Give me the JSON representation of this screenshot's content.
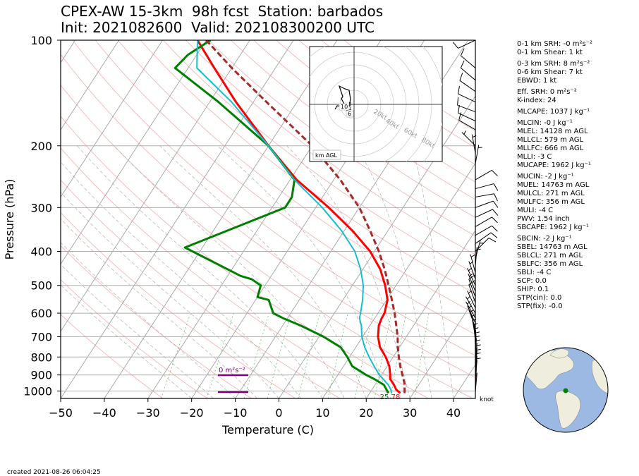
{
  "header": {
    "line1": "CPEX-AW 15-3km  98h fcst  Station: barbados",
    "line2": "Init: 2021082600  Valid: 202108300200 UTC"
  },
  "footer": "created 2021-08-26 06:04:25",
  "hodograph": {
    "ring_labels": [
      "20kt",
      "40kt",
      "60kt",
      "80kt"
    ],
    "height_labels": [
      "10",
      "3",
      "1",
      "6"
    ],
    "corner_label": "km AGL"
  },
  "srh_label": "0 m²s⁻²",
  "barb_unit": "knot",
  "surface_labels": {
    "dewpoint": "25",
    "temperature": "78"
  },
  "params": [
    {
      "t": "0-1 km SRH: -0 m²s⁻²"
    },
    {
      "t": "0-1 km Shear: 1 kt"
    },
    {
      "t": "0-3 km SRH: 8 m²s⁻²",
      "gap": true
    },
    {
      "t": "0-6 km Shear: 7 kt"
    },
    {
      "t": "EBWD: 1 kt"
    },
    {
      "t": "Eff. SRH: 0 m²s⁻²",
      "gap": true
    },
    {
      "t": "K-index: 24"
    },
    {
      "t": "MLCAPE: 1037 J kg⁻¹",
      "gap": true
    },
    {
      "t": "MLCIN: -0 J kg⁻¹",
      "gap": true
    },
    {
      "t": "MLEL: 14128 m AGL"
    },
    {
      "t": "MLLCL: 579 m AGL"
    },
    {
      "t": "MLLFC: 666 m AGL"
    },
    {
      "t": "MLLI: -3 C"
    },
    {
      "t": "MUCAPE: 1962 J kg⁻¹"
    },
    {
      "t": "MUCIN: -2 J kg⁻¹",
      "gap": true
    },
    {
      "t": "MUEL: 14763 m AGL"
    },
    {
      "t": "MULCL: 271 m AGL"
    },
    {
      "t": "MULFC: 356 m AGL"
    },
    {
      "t": "MULI: -4 C"
    },
    {
      "t": "PWV: 1.54 inch"
    },
    {
      "t": "SBCAPE: 1962 J kg⁻¹"
    },
    {
      "t": "SBCIN: -2 J kg⁻¹",
      "gap": true
    },
    {
      "t": "SBEL: 14763 m AGL"
    },
    {
      "t": "SBLCL: 271 m AGL"
    },
    {
      "t": "SBLFC: 356 m AGL"
    },
    {
      "t": "SBLI: -4 C"
    },
    {
      "t": "SCP: 0.0"
    },
    {
      "t": "SHIP: 0.1"
    },
    {
      "t": "STP(cin): 0.0"
    },
    {
      "t": "STP(fix): -0.0"
    }
  ],
  "colors": {
    "temperature": "#ff0000",
    "dewpoint": "#008000",
    "wetbulb": "#17becf",
    "parcel": "#a52a2a",
    "isotherm": "#aaaaaa",
    "dry_adiabat": "#f5b5b5",
    "mixing_ratio": "#7cc47c",
    "srh": "#800080",
    "globe_ocean": "#9cb9e4",
    "globe_land": "#efeede"
  },
  "chart_data": {
    "type": "skew-t",
    "xlabel": "Temperature (C)",
    "ylabel": "Pressure (hPa)",
    "x_ticks": [
      -50,
      -40,
      -30,
      -20,
      -10,
      0,
      10,
      20,
      30,
      40
    ],
    "y_ticks": [
      100,
      200,
      300,
      400,
      500,
      600,
      700,
      800,
      900,
      1000
    ],
    "xlim": [
      -50,
      45
    ],
    "ylim": [
      1050,
      100
    ],
    "y_scale": "log",
    "grid": true,
    "series": [
      {
        "key": "temperature",
        "points": [
          [
            1014,
            27
          ],
          [
            990,
            25.5
          ],
          [
            960,
            24.3
          ],
          [
            925,
            22.6
          ],
          [
            900,
            22
          ],
          [
            850,
            20.5
          ],
          [
            800,
            18.3
          ],
          [
            750,
            15.5
          ],
          [
            700,
            13.5
          ],
          [
            650,
            12
          ],
          [
            620,
            11.6
          ],
          [
            600,
            11.5
          ],
          [
            550,
            10.2
          ],
          [
            500,
            7.5
          ],
          [
            450,
            4
          ],
          [
            400,
            -1
          ],
          [
            350,
            -8
          ],
          [
            300,
            -17
          ],
          [
            250,
            -28.5
          ],
          [
            200,
            -40
          ],
          [
            150,
            -54
          ],
          [
            120,
            -64
          ],
          [
            100,
            -72
          ]
        ]
      },
      {
        "key": "dewpoint",
        "points": [
          [
            1014,
            24.3
          ],
          [
            990,
            23.3
          ],
          [
            960,
            22
          ],
          [
            925,
            19
          ],
          [
            900,
            16.5
          ],
          [
            850,
            12
          ],
          [
            800,
            9.5
          ],
          [
            750,
            6.5
          ],
          [
            700,
            1
          ],
          [
            650,
            -6
          ],
          [
            620,
            -11
          ],
          [
            600,
            -14
          ],
          [
            550,
            -17
          ],
          [
            540,
            -20
          ],
          [
            500,
            -21
          ],
          [
            480,
            -24
          ],
          [
            470,
            -27
          ],
          [
            390,
            -44
          ],
          [
            300,
            -27
          ],
          [
            280,
            -27
          ],
          [
            250,
            -29
          ],
          [
            200,
            -40
          ],
          [
            150,
            -58
          ],
          [
            120,
            -73
          ],
          [
            110,
            -72
          ],
          [
            100,
            -69
          ]
        ]
      },
      {
        "key": "wetbulb",
        "points": [
          [
            1014,
            25
          ],
          [
            990,
            24.3
          ],
          [
            960,
            23
          ],
          [
            925,
            21
          ],
          [
            900,
            19.5
          ],
          [
            850,
            17
          ],
          [
            800,
            14.5
          ],
          [
            750,
            12
          ],
          [
            700,
            9.8
          ],
          [
            650,
            8
          ],
          [
            620,
            6.5
          ],
          [
            600,
            6
          ],
          [
            550,
            4.5
          ],
          [
            500,
            2.5
          ],
          [
            450,
            -0.5
          ],
          [
            400,
            -4.5
          ],
          [
            350,
            -10.5
          ],
          [
            300,
            -18.5
          ],
          [
            250,
            -29
          ],
          [
            200,
            -40
          ],
          [
            150,
            -55
          ],
          [
            120,
            -68
          ],
          [
            100,
            -72
          ]
        ]
      },
      {
        "key": "parcel",
        "dashed": true,
        "points": [
          [
            1014,
            28
          ],
          [
            950,
            26.5
          ],
          [
            900,
            24.8
          ],
          [
            850,
            23
          ],
          [
            800,
            21.3
          ],
          [
            750,
            19.6
          ],
          [
            700,
            18
          ],
          [
            650,
            16
          ],
          [
            600,
            13.8
          ],
          [
            550,
            11.2
          ],
          [
            500,
            8.3
          ],
          [
            450,
            5
          ],
          [
            400,
            1
          ],
          [
            350,
            -4
          ],
          [
            300,
            -10
          ],
          [
            250,
            -18.5
          ],
          [
            200,
            -30
          ],
          [
            150,
            -47
          ],
          [
            120,
            -60
          ],
          [
            100,
            -70
          ]
        ]
      }
    ],
    "wind_barbs_kt": [
      [
        1005,
        2,
        5
      ],
      [
        980,
        1,
        3
      ],
      [
        955,
        2,
        3
      ],
      [
        925,
        2,
        5
      ],
      [
        900,
        3,
        5
      ],
      [
        870,
        3,
        5
      ],
      [
        850,
        4,
        5
      ],
      [
        825,
        5,
        5
      ],
      [
        800,
        6,
        3
      ],
      [
        780,
        6,
        2
      ],
      [
        760,
        6,
        1
      ],
      [
        740,
        5,
        357
      ],
      [
        720,
        5,
        354
      ],
      [
        700,
        5,
        350
      ],
      [
        680,
        4,
        347
      ],
      [
        660,
        4,
        340
      ],
      [
        640,
        3,
        335
      ],
      [
        620,
        3,
        330
      ],
      [
        600,
        4,
        330
      ],
      [
        580,
        6,
        335
      ],
      [
        560,
        8,
        340
      ],
      [
        540,
        8,
        340
      ],
      [
        520,
        7,
        338
      ],
      [
        500,
        6,
        335
      ],
      [
        480,
        5,
        340
      ],
      [
        460,
        6,
        345
      ],
      [
        440,
        6,
        5
      ],
      [
        420,
        6,
        15
      ],
      [
        400,
        8,
        45
      ],
      [
        380,
        10,
        55
      ],
      [
        360,
        10,
        60
      ],
      [
        340,
        12,
        60
      ],
      [
        320,
        10,
        65
      ],
      [
        300,
        11,
        70
      ],
      [
        280,
        12,
        80
      ],
      [
        265,
        12,
        75
      ],
      [
        250,
        12,
        60
      ],
      [
        225,
        6,
        10
      ],
      [
        210,
        4,
        350
      ],
      [
        200,
        5,
        315
      ],
      [
        180,
        8,
        300
      ],
      [
        170,
        8,
        295
      ],
      [
        160,
        8,
        290
      ],
      [
        150,
        10,
        295
      ],
      [
        140,
        12,
        305
      ],
      [
        130,
        12,
        310
      ],
      [
        120,
        10,
        310
      ],
      [
        100,
        8,
        245
      ]
    ]
  }
}
